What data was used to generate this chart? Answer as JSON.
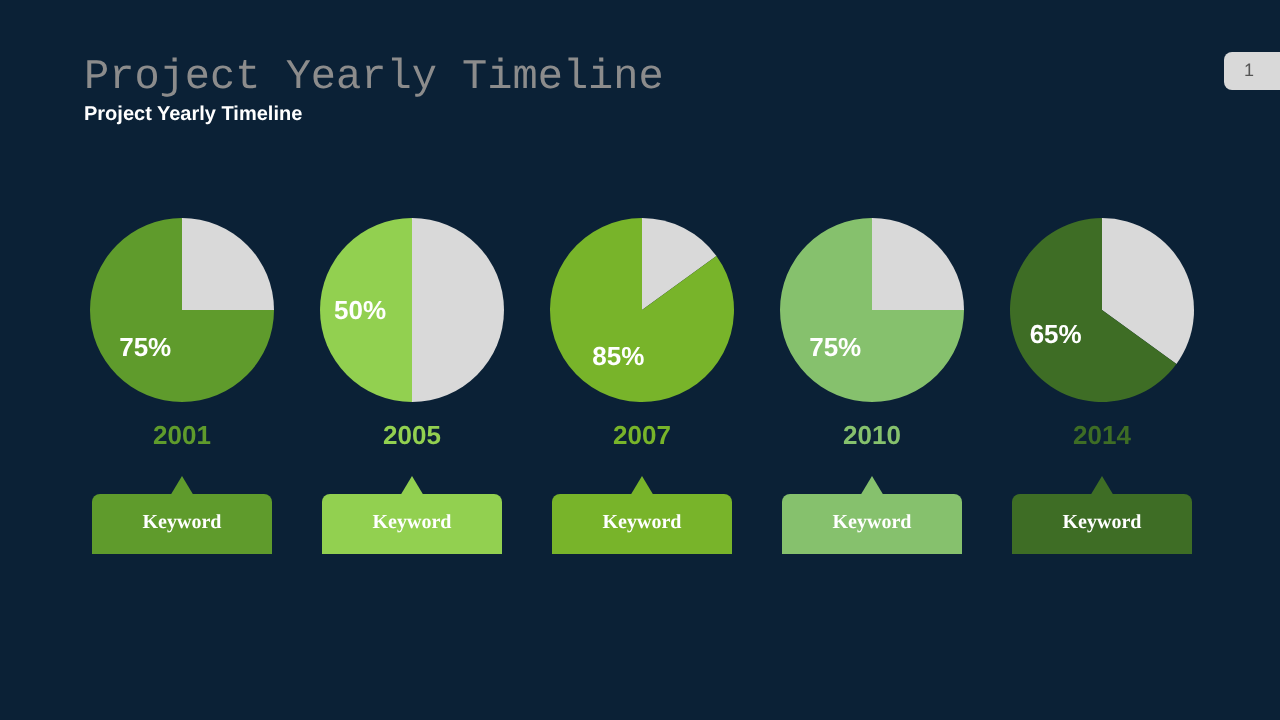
{
  "chart_data": [
    {
      "type": "pie",
      "title": "Project Yearly Timeline",
      "subtitle": "Project Yearly Timeline",
      "annotations": [
        "1",
        "Keyword"
      ],
      "xlabel": "2001",
      "categories": [
        null,
        null
      ],
      "values": [
        25,
        75
      ],
      "colors": [
        "#d9d9d9",
        "#5f9b2c"
      ],
      "value_labels": [
        null,
        "75%"
      ]
    },
    {
      "type": "pie",
      "annotations": [
        "Keyword"
      ],
      "xlabel": "2005",
      "categories": [
        null,
        null
      ],
      "values": [
        50,
        50
      ],
      "colors": [
        "#d9d9d9",
        "#92d050"
      ],
      "value_labels": [
        null,
        "50%"
      ]
    },
    {
      "type": "pie",
      "annotations": [
        "Keyword"
      ],
      "xlabel": "2007",
      "categories": [
        null,
        null
      ],
      "values": [
        15,
        85
      ],
      "colors": [
        "#d9d9d9",
        "#78b42a"
      ],
      "value_labels": [
        null,
        "85%"
      ]
    },
    {
      "type": "pie",
      "annotations": [
        "Keyword"
      ],
      "xlabel": "2010",
      "categories": [
        null,
        null
      ],
      "values": [
        25,
        75
      ],
      "colors": [
        "#d9d9d9",
        "#86c16d"
      ],
      "value_labels": [
        null,
        "75%"
      ]
    },
    {
      "type": "pie",
      "annotations": [
        "Keyword"
      ],
      "xlabel": "2014",
      "categories": [
        null,
        null
      ],
      "values": [
        35,
        65
      ],
      "colors": [
        "#d9d9d9",
        "#3e6d25"
      ],
      "value_labels": [
        null,
        "65%"
      ]
    }
  ]
}
